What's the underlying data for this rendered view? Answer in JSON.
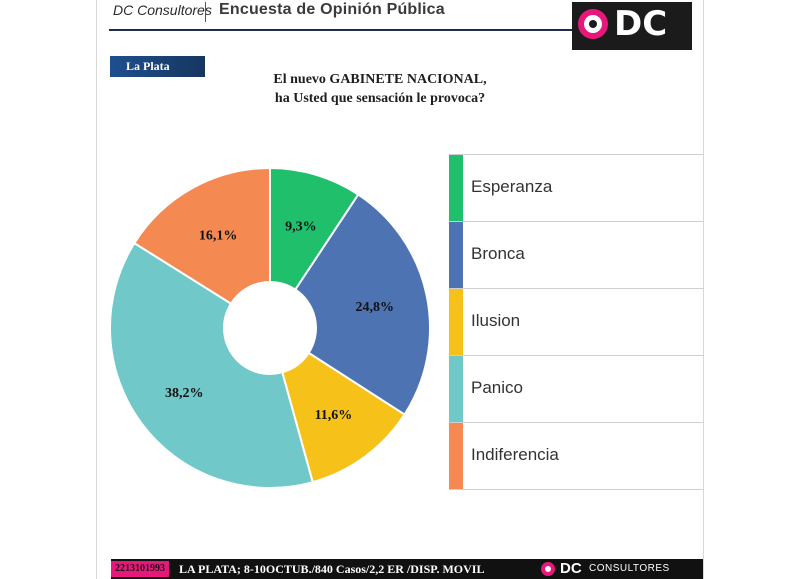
{
  "header": {
    "brand": "DC Consultores",
    "survey_title": "Encuesta de Opinión Pública",
    "logo_text": "DC"
  },
  "location_tag": "La Plata",
  "question": {
    "line1": "El nuevo GABINETE NACIONAL,",
    "line2": "ha Usted que sensación le provoca?"
  },
  "chart_data": {
    "type": "pie",
    "donut": true,
    "title": "El nuevo GABINETE NACIONAL, ha Usted que sensación le provoca?",
    "categories": [
      "Esperanza",
      "Bronca",
      "Ilusion",
      "Panico",
      "Indiferencia"
    ],
    "values": [
      9.3,
      24.8,
      11.6,
      38.2,
      16.1
    ],
    "value_labels": [
      "9,3%",
      "24,8%",
      "11,6%",
      "38,2%",
      "16,1%"
    ],
    "colors": [
      "#1fbf6c",
      "#4d73b3",
      "#f6c21a",
      "#70c8c8",
      "#f48a51"
    ],
    "legend_position": "right"
  },
  "footer": {
    "phone": "2213101993",
    "details": "LA PLATA; 8-10OCTUB./840 Casos/2,2 ER /DISP. MOVIL",
    "logo_text": "DC",
    "logo_sub": "CONSULTORES"
  }
}
